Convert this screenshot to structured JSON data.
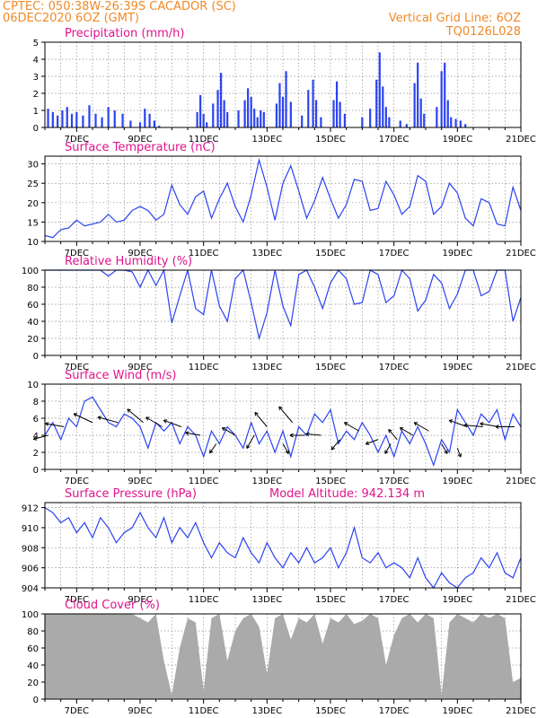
{
  "header": {
    "line1_left": "CPTEC:   050:38W-26:39S   CACADOR (SC)",
    "line2_left": "06DEC2020 6OZ (GMT)",
    "line2_right": "Vertical Grid Line: 6OZ",
    "line3_right": "TQ0126L028"
  },
  "colors": {
    "header": "#f08a28",
    "titles": "#e0148c",
    "series": "#2b43f0",
    "cloud": "#aaaaaa",
    "arrow": "#000000"
  },
  "x_tick_labels": [
    "7DEC",
    "9DEC",
    "11DEC",
    "13DEC",
    "15DEC",
    "17DEC",
    "19DEC",
    "21DEC"
  ],
  "chart_data": [
    {
      "type": "bar",
      "title": "Precipitation (mm/h)",
      "x_range_days": [
        6,
        21
      ],
      "ylim": [
        0,
        5
      ],
      "yticks": [
        0,
        1,
        2,
        3,
        4,
        5
      ],
      "grid": true,
      "events": [
        {
          "day": 6.1,
          "value": 1.1
        },
        {
          "day": 6.25,
          "value": 0.9
        },
        {
          "day": 6.4,
          "value": 0.7
        },
        {
          "day": 6.55,
          "value": 1.0
        },
        {
          "day": 6.7,
          "value": 1.2
        },
        {
          "day": 6.85,
          "value": 0.8
        },
        {
          "day": 7.0,
          "value": 0.9
        },
        {
          "day": 7.2,
          "value": 0.7
        },
        {
          "day": 7.4,
          "value": 1.3
        },
        {
          "day": 7.6,
          "value": 0.8
        },
        {
          "day": 7.8,
          "value": 0.6
        },
        {
          "day": 8.0,
          "value": 1.2
        },
        {
          "day": 8.2,
          "value": 1.0
        },
        {
          "day": 8.45,
          "value": 0.8
        },
        {
          "day": 8.7,
          "value": 0.4
        },
        {
          "day": 9.0,
          "value": 0.3
        },
        {
          "day": 9.15,
          "value": 1.1
        },
        {
          "day": 9.3,
          "value": 0.8
        },
        {
          "day": 9.45,
          "value": 0.4
        },
        {
          "day": 9.6,
          "value": 0.1
        },
        {
          "day": 10.8,
          "value": 0.9
        },
        {
          "day": 10.9,
          "value": 1.9
        },
        {
          "day": 11.0,
          "value": 0.8
        },
        {
          "day": 11.1,
          "value": 0.3
        },
        {
          "day": 11.3,
          "value": 1.4
        },
        {
          "day": 11.45,
          "value": 2.2
        },
        {
          "day": 11.55,
          "value": 3.2
        },
        {
          "day": 11.65,
          "value": 1.6
        },
        {
          "day": 11.75,
          "value": 0.9
        },
        {
          "day": 12.1,
          "value": 1.0
        },
        {
          "day": 12.3,
          "value": 1.6
        },
        {
          "day": 12.4,
          "value": 2.3
        },
        {
          "day": 12.5,
          "value": 1.8
        },
        {
          "day": 12.6,
          "value": 1.1
        },
        {
          "day": 12.7,
          "value": 0.6
        },
        {
          "day": 12.8,
          "value": 1.0
        },
        {
          "day": 12.9,
          "value": 0.9
        },
        {
          "day": 13.3,
          "value": 1.4
        },
        {
          "day": 13.4,
          "value": 2.6
        },
        {
          "day": 13.5,
          "value": 1.8
        },
        {
          "day": 13.6,
          "value": 3.3
        },
        {
          "day": 13.75,
          "value": 1.5
        },
        {
          "day": 14.1,
          "value": 0.7
        },
        {
          "day": 14.3,
          "value": 2.2
        },
        {
          "day": 14.45,
          "value": 2.8
        },
        {
          "day": 14.55,
          "value": 1.6
        },
        {
          "day": 14.7,
          "value": 0.6
        },
        {
          "day": 15.1,
          "value": 1.6
        },
        {
          "day": 15.2,
          "value": 2.7
        },
        {
          "day": 15.3,
          "value": 1.5
        },
        {
          "day": 15.45,
          "value": 0.8
        },
        {
          "day": 16.0,
          "value": 0.6
        },
        {
          "day": 16.25,
          "value": 1.1
        },
        {
          "day": 16.45,
          "value": 2.8
        },
        {
          "day": 16.55,
          "value": 4.4
        },
        {
          "day": 16.65,
          "value": 2.4
        },
        {
          "day": 16.75,
          "value": 1.2
        },
        {
          "day": 16.85,
          "value": 0.6
        },
        {
          "day": 17.2,
          "value": 0.4
        },
        {
          "day": 17.4,
          "value": 0.2
        },
        {
          "day": 17.65,
          "value": 2.6
        },
        {
          "day": 17.75,
          "value": 3.8
        },
        {
          "day": 17.85,
          "value": 1.7
        },
        {
          "day": 17.95,
          "value": 0.8
        },
        {
          "day": 18.35,
          "value": 1.2
        },
        {
          "day": 18.5,
          "value": 3.3
        },
        {
          "day": 18.6,
          "value": 3.8
        },
        {
          "day": 18.7,
          "value": 1.6
        },
        {
          "day": 18.8,
          "value": 0.6
        },
        {
          "day": 18.95,
          "value": 0.5
        },
        {
          "day": 19.1,
          "value": 0.4
        },
        {
          "day": 19.25,
          "value": 0.2
        }
      ]
    },
    {
      "type": "line",
      "title": "Surface Temperature (nC)",
      "x_range_days": [
        6,
        21
      ],
      "ylim": [
        10,
        32
      ],
      "yticks": [
        10,
        15,
        20,
        25,
        30
      ],
      "grid": true,
      "x": [
        6.0,
        6.25,
        6.5,
        6.75,
        7.0,
        7.25,
        7.5,
        7.75,
        8.0,
        8.25,
        8.5,
        8.75,
        9.0,
        9.25,
        9.5,
        9.75,
        10.0,
        10.25,
        10.5,
        10.75,
        11.0,
        11.25,
        11.5,
        11.75,
        12.0,
        12.25,
        12.5,
        12.75,
        13.0,
        13.25,
        13.5,
        13.75,
        14.0,
        14.25,
        14.5,
        14.75,
        15.0,
        15.25,
        15.5,
        15.75,
        16.0,
        16.25,
        16.5,
        16.75,
        17.0,
        17.25,
        17.5,
        17.75,
        18.0,
        18.25,
        18.5,
        18.75,
        19.0,
        19.25,
        19.5,
        19.75,
        20.0,
        20.25,
        20.5,
        20.75,
        21.0
      ],
      "y": [
        11.5,
        11.0,
        13.0,
        13.5,
        15.5,
        14.0,
        14.5,
        15.0,
        17.0,
        15.0,
        15.5,
        18.0,
        19.0,
        18.0,
        15.5,
        17.0,
        24.5,
        19.5,
        17.0,
        21.5,
        23.0,
        16.0,
        21.0,
        25.0,
        19.0,
        15.0,
        22.0,
        31.0,
        24.0,
        15.5,
        25.0,
        29.5,
        23.0,
        16.0,
        20.5,
        26.5,
        21.0,
        16.0,
        19.5,
        26.0,
        25.5,
        18.0,
        18.5,
        25.5,
        22.0,
        17.0,
        19.0,
        27.0,
        25.5,
        17.0,
        19.0,
        25.0,
        22.5,
        16.0,
        14.0,
        21.0,
        20.0,
        14.5,
        14.0,
        24.0,
        18.0
      ]
    },
    {
      "type": "line",
      "title": "Relative Humidity (%)",
      "x_range_days": [
        6,
        21
      ],
      "ylim": [
        0,
        100
      ],
      "yticks": [
        0,
        20,
        40,
        60,
        80,
        100
      ],
      "grid": true,
      "x": [
        6.0,
        6.25,
        6.5,
        6.75,
        7.0,
        7.25,
        7.5,
        7.75,
        8.0,
        8.25,
        8.5,
        8.75,
        9.0,
        9.25,
        9.5,
        9.75,
        10.0,
        10.25,
        10.5,
        10.75,
        11.0,
        11.25,
        11.5,
        11.75,
        12.0,
        12.25,
        12.5,
        12.75,
        13.0,
        13.25,
        13.5,
        13.75,
        14.0,
        14.25,
        14.5,
        14.75,
        15.0,
        15.25,
        15.5,
        15.75,
        16.0,
        16.25,
        16.5,
        16.75,
        17.0,
        17.25,
        17.5,
        17.75,
        18.0,
        18.25,
        18.5,
        18.75,
        19.0,
        19.25,
        19.5,
        19.75,
        20.0,
        20.25,
        20.5,
        20.75,
        21.0
      ],
      "y": [
        100,
        100,
        100,
        100,
        100,
        100,
        100,
        100,
        93,
        100,
        100,
        98,
        80,
        100,
        82,
        100,
        38,
        70,
        100,
        55,
        48,
        100,
        58,
        40,
        90,
        100,
        62,
        20,
        50,
        100,
        58,
        35,
        95,
        100,
        80,
        55,
        85,
        100,
        90,
        60,
        62,
        100,
        95,
        62,
        70,
        100,
        90,
        52,
        65,
        95,
        85,
        55,
        72,
        100,
        100,
        70,
        75,
        100,
        100,
        40,
        68
      ]
    },
    {
      "type": "line",
      "title": "Surface Wind (m/s)",
      "x_range_days": [
        6,
        21
      ],
      "ylim": [
        0,
        10
      ],
      "yticks": [
        0,
        2,
        4,
        6,
        8,
        10
      ],
      "grid": true,
      "x": [
        6.0,
        6.25,
        6.5,
        6.75,
        7.0,
        7.25,
        7.5,
        7.75,
        8.0,
        8.25,
        8.5,
        8.75,
        9.0,
        9.25,
        9.5,
        9.75,
        10.0,
        10.25,
        10.5,
        10.75,
        11.0,
        11.25,
        11.5,
        11.75,
        12.0,
        12.25,
        12.5,
        12.75,
        13.0,
        13.25,
        13.5,
        13.75,
        14.0,
        14.25,
        14.5,
        14.75,
        15.0,
        15.25,
        15.5,
        15.75,
        16.0,
        16.25,
        16.5,
        16.75,
        17.0,
        17.25,
        17.5,
        17.75,
        18.0,
        18.25,
        18.5,
        18.75,
        19.0,
        19.25,
        19.5,
        19.75,
        20.0,
        20.25,
        20.5,
        20.75,
        21.0
      ],
      "y": [
        4.0,
        5.5,
        3.5,
        6.0,
        5.0,
        8.0,
        8.5,
        7.0,
        5.5,
        5.0,
        6.5,
        6.0,
        5.0,
        2.5,
        5.5,
        4.5,
        5.5,
        3.0,
        5.0,
        4.0,
        1.5,
        4.5,
        3.0,
        5.0,
        4.0,
        2.5,
        5.5,
        3.0,
        4.5,
        2.0,
        4.5,
        1.5,
        5.0,
        4.0,
        6.5,
        5.5,
        7.0,
        3.0,
        4.5,
        3.5,
        5.5,
        4.0,
        2.0,
        4.0,
        1.5,
        4.5,
        3.0,
        5.0,
        3.0,
        0.5,
        3.5,
        2.0,
        7.0,
        5.5,
        4.0,
        6.5,
        5.5,
        7.0,
        3.5,
        6.5,
        5.0
      ],
      "wind_arrows": [
        {
          "day": 6.1,
          "speed": 4.0,
          "dir_deg": 195
        },
        {
          "day": 6.6,
          "speed": 5.0,
          "dir_deg": 170
        },
        {
          "day": 7.5,
          "speed": 5.5,
          "dir_deg": 155
        },
        {
          "day": 8.3,
          "speed": 5.5,
          "dir_deg": 165
        },
        {
          "day": 9.1,
          "speed": 5.5,
          "dir_deg": 140
        },
        {
          "day": 9.7,
          "speed": 5.0,
          "dir_deg": 150
        },
        {
          "day": 10.3,
          "speed": 5.0,
          "dir_deg": 160
        },
        {
          "day": 10.9,
          "speed": 4.0,
          "dir_deg": 170
        },
        {
          "day": 11.4,
          "speed": 3.0,
          "dir_deg": 235
        },
        {
          "day": 12.0,
          "speed": 4.0,
          "dir_deg": 150
        },
        {
          "day": 12.6,
          "speed": 4.0,
          "dir_deg": 240
        },
        {
          "day": 13.0,
          "speed": 5.0,
          "dir_deg": 130
        },
        {
          "day": 13.5,
          "speed": 3.0,
          "dir_deg": 300
        },
        {
          "day": 13.8,
          "speed": 5.5,
          "dir_deg": 130
        },
        {
          "day": 14.2,
          "speed": 4.0,
          "dir_deg": 180
        },
        {
          "day": 14.7,
          "speed": 4.0,
          "dir_deg": 175
        },
        {
          "day": 15.3,
          "speed": 3.5,
          "dir_deg": 230
        },
        {
          "day": 15.9,
          "speed": 4.5,
          "dir_deg": 150
        },
        {
          "day": 16.5,
          "speed": 3.5,
          "dir_deg": 200
        },
        {
          "day": 16.9,
          "speed": 3.0,
          "dir_deg": 240
        },
        {
          "day": 17.1,
          "speed": 3.5,
          "dir_deg": 130
        },
        {
          "day": 17.6,
          "speed": 4.0,
          "dir_deg": 150
        },
        {
          "day": 18.1,
          "speed": 4.5,
          "dir_deg": 150
        },
        {
          "day": 18.5,
          "speed": 3.0,
          "dir_deg": 300
        },
        {
          "day": 19.0,
          "speed": 2.5,
          "dir_deg": 290
        },
        {
          "day": 19.3,
          "speed": 5.0,
          "dir_deg": 160
        },
        {
          "day": 19.8,
          "speed": 5.0,
          "dir_deg": 175
        },
        {
          "day": 20.3,
          "speed": 5.0,
          "dir_deg": 170
        },
        {
          "day": 20.8,
          "speed": 5.0,
          "dir_deg": 180
        }
      ]
    },
    {
      "type": "line",
      "title": "Surface Pressure (hPa)",
      "subtitle": "Model Altitude: 942.134 m",
      "x_range_days": [
        6,
        21
      ],
      "ylim": [
        904,
        912.5
      ],
      "yticks": [
        904,
        906,
        908,
        910,
        912
      ],
      "grid": true,
      "x": [
        6.0,
        6.25,
        6.5,
        6.75,
        7.0,
        7.25,
        7.5,
        7.75,
        8.0,
        8.25,
        8.5,
        8.75,
        9.0,
        9.25,
        9.5,
        9.75,
        10.0,
        10.25,
        10.5,
        10.75,
        11.0,
        11.25,
        11.5,
        11.75,
        12.0,
        12.25,
        12.5,
        12.75,
        13.0,
        13.25,
        13.5,
        13.75,
        14.0,
        14.25,
        14.5,
        14.75,
        15.0,
        15.25,
        15.5,
        15.75,
        16.0,
        16.25,
        16.5,
        16.75,
        17.0,
        17.25,
        17.5,
        17.75,
        18.0,
        18.25,
        18.5,
        18.75,
        19.0,
        19.25,
        19.5,
        19.75,
        20.0,
        20.25,
        20.5,
        20.75,
        21.0
      ],
      "y": [
        912.0,
        911.5,
        910.5,
        911.0,
        909.5,
        910.5,
        909.0,
        911.0,
        910.0,
        908.5,
        909.5,
        910.0,
        911.5,
        910.0,
        909.0,
        911.0,
        908.5,
        910.0,
        909.0,
        910.5,
        908.5,
        907.0,
        908.5,
        907.5,
        907.0,
        909.0,
        907.5,
        906.5,
        908.5,
        907.0,
        906.0,
        907.5,
        906.5,
        908.0,
        906.5,
        907.0,
        908.0,
        906.0,
        907.5,
        910.0,
        907.0,
        906.5,
        907.5,
        906.0,
        906.5,
        906.0,
        905.0,
        907.0,
        905.0,
        904.0,
        905.5,
        904.5,
        904.0,
        905.0,
        905.5,
        907.0,
        906.0,
        907.5,
        905.5,
        905.0,
        907.0
      ]
    },
    {
      "type": "area",
      "title": "Cloud Cover (%)",
      "x_range_days": [
        6,
        21
      ],
      "ylim": [
        0,
        100
      ],
      "yticks": [
        0,
        20,
        40,
        60,
        80,
        100
      ],
      "grid": true,
      "x": [
        6.0,
        6.25,
        6.5,
        6.75,
        7.0,
        7.25,
        7.5,
        7.75,
        8.0,
        8.25,
        8.5,
        8.75,
        9.0,
        9.25,
        9.5,
        9.75,
        10.0,
        10.25,
        10.5,
        10.75,
        11.0,
        11.25,
        11.5,
        11.75,
        12.0,
        12.25,
        12.5,
        12.75,
        13.0,
        13.25,
        13.5,
        13.75,
        14.0,
        14.25,
        14.5,
        14.75,
        15.0,
        15.25,
        15.5,
        15.75,
        16.0,
        16.25,
        16.5,
        16.75,
        17.0,
        17.25,
        17.5,
        17.75,
        18.0,
        18.25,
        18.5,
        18.75,
        19.0,
        19.25,
        19.5,
        19.75,
        20.0,
        20.25,
        20.5,
        20.75,
        21.0
      ],
      "y": [
        100,
        100,
        100,
        100,
        100,
        100,
        100,
        100,
        100,
        100,
        100,
        100,
        95,
        90,
        100,
        45,
        5,
        60,
        95,
        90,
        10,
        95,
        100,
        45,
        80,
        95,
        100,
        85,
        30,
        95,
        100,
        70,
        95,
        90,
        100,
        65,
        95,
        90,
        100,
        88,
        92,
        100,
        95,
        40,
        75,
        95,
        100,
        90,
        100,
        95,
        5,
        90,
        100,
        95,
        90,
        100,
        95,
        100,
        95,
        20,
        25
      ]
    }
  ]
}
